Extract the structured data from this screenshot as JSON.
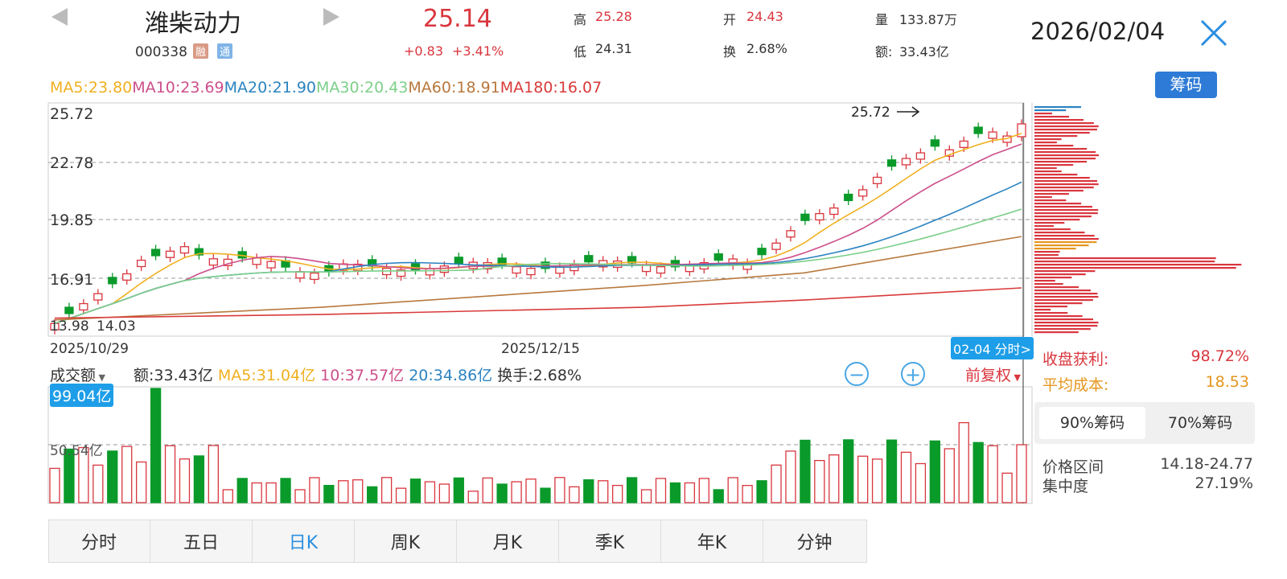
{
  "header": {
    "name": "潍柴动力",
    "code": "000338",
    "tag_rong": "融",
    "tag_tong": "通",
    "price": "25.14",
    "change": "+0.83",
    "change_pct": "+3.41%",
    "high_label": "高",
    "high": "25.28",
    "low_label": "低",
    "low": "24.31",
    "open_label": "开",
    "open": "24.43",
    "turnover_label": "换",
    "turnover": "2.68%",
    "volume_label": "量",
    "volume": "133.87万",
    "amount_label": "额:",
    "amount": "33.43亿",
    "date": "2026/02/04"
  },
  "ma_bar": {
    "ma5": "MA5:23.80",
    "ma10": "MA10:23.69",
    "ma20": "MA20:21.90",
    "ma30": "MA30:20.43",
    "ma60": "MA60:18.91",
    "ma180": "MA180:16.07",
    "chips_button": "筹码"
  },
  "colors": {
    "up": "#d9363e",
    "down": "#0a9a2a",
    "ma5": "#f0b020",
    "ma10": "#cc4f8a",
    "ma20": "#2b83c0",
    "ma30": "#7ccf8a",
    "ma60": "#b8783e",
    "ma180": "#d93a3a",
    "accent": "#2d7bd6"
  },
  "chart": {
    "y_ticks": [
      "25.72",
      "22.78",
      "19.85",
      "16.91",
      "13.98"
    ],
    "low_marker": "14.03",
    "high_marker": "25.72",
    "x_labels": [
      "2025/10/29",
      "2025/12/15"
    ],
    "fen_shi_tag": "02-04 分时>"
  },
  "chart_data": {
    "type": "candlestick",
    "ylim": [
      13.98,
      25.72
    ],
    "x": [
      "2025/10/29",
      "2025/12/15",
      "2026/02/04"
    ],
    "ohlc_last": {
      "open": 24.43,
      "high": 25.28,
      "low": 24.31,
      "close": 25.14
    },
    "period_high": 25.72,
    "period_low": 14.03,
    "volume_max": "99.04亿",
    "volume_ref": "50.54亿"
  },
  "volume_bar": {
    "selector": "成交额",
    "amount": "额:33.43亿",
    "ma5": "MA5:31.04亿",
    "ma10": "10:37.57亿",
    "ma20": "20:34.86亿",
    "turnover": "换手:2.68%",
    "adjust": "前复权",
    "max_label": "99.04亿",
    "mid_label": "50.54亿"
  },
  "right_panel": {
    "profit_label": "收盘获利:",
    "profit_value": "98.72%",
    "avg_cost_label": "平均成本:",
    "avg_cost_value": "18.53",
    "tab90": "90%筹码",
    "tab70": "70%筹码",
    "price_range_label": "价格区间",
    "price_range_value": "14.18-24.77",
    "concentration_label": "集中度",
    "concentration_value": "27.19%"
  },
  "tabs": [
    "分时",
    "五日",
    "日K",
    "周K",
    "月K",
    "季K",
    "年K",
    "分钟"
  ]
}
